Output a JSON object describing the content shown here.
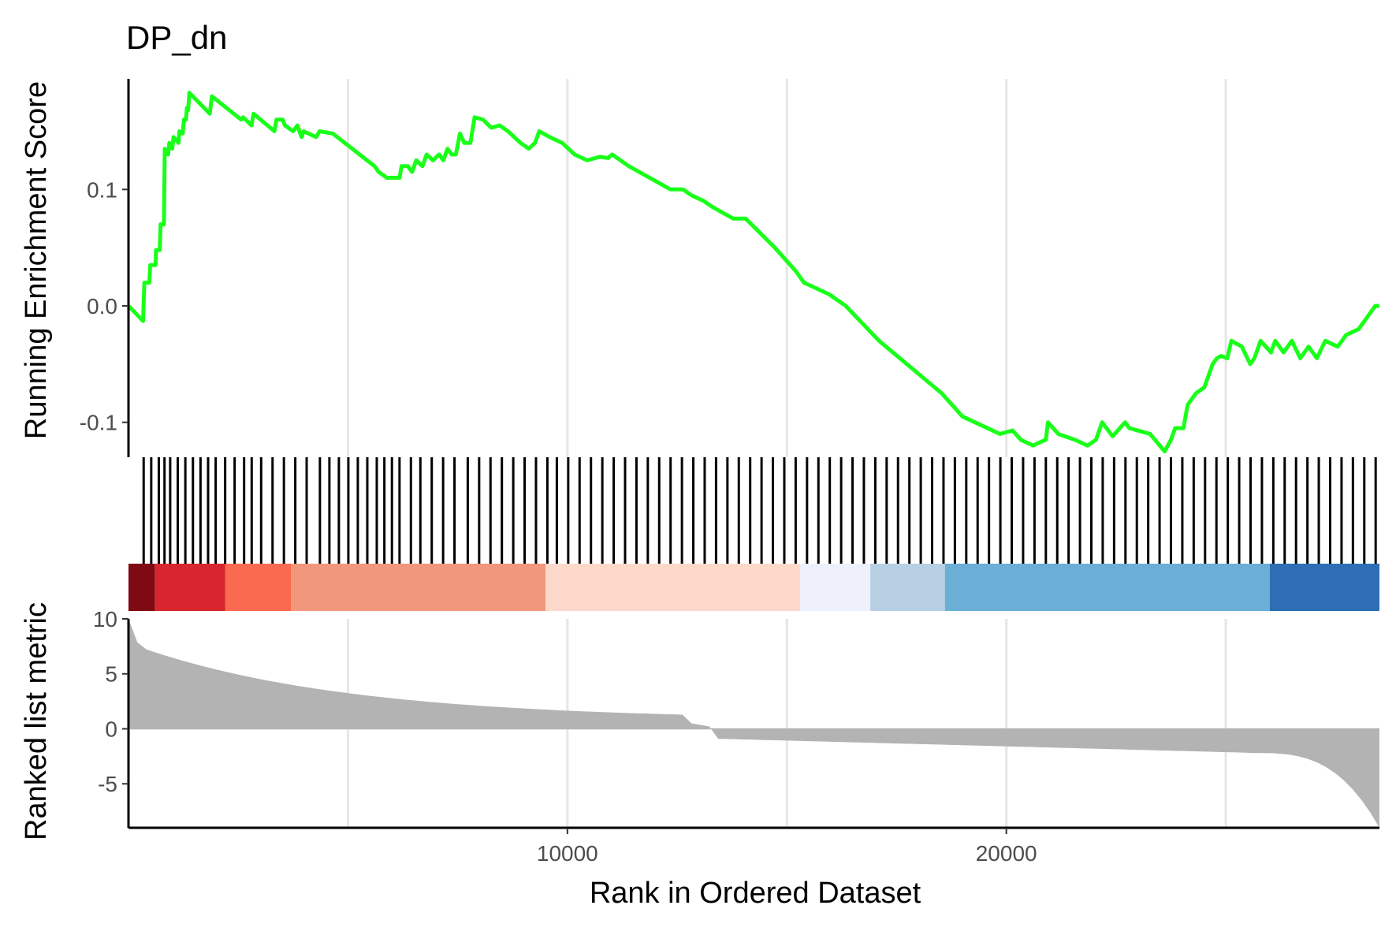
{
  "chart_data": {
    "type": "line",
    "title": "DP_dn",
    "xlabel": "Rank in Ordered Dataset",
    "x_range": [
      0,
      28500
    ],
    "x_ticks": [
      10000,
      20000
    ],
    "x_tick_labels": [
      "10000",
      "20000"
    ],
    "x_gridlines": [
      5000,
      10000,
      15000,
      20000,
      25000
    ],
    "panels": {
      "running_score": {
        "ylabel": "Running Enrichment Score",
        "ylim": [
          -0.13,
          0.195
        ],
        "y_ticks": [
          0.1,
          0.0,
          -0.1
        ],
        "y_tick_labels": [
          "0.1",
          "0.0",
          "-0.1"
        ],
        "line_color": "#1aff1a",
        "points": [
          [
            0,
            0.0
          ],
          [
            350,
            -0.013
          ],
          [
            380,
            0.02
          ],
          [
            500,
            0.02
          ],
          [
            520,
            0.035
          ],
          [
            650,
            0.035
          ],
          [
            660,
            0.048
          ],
          [
            750,
            0.048
          ],
          [
            770,
            0.07
          ],
          [
            850,
            0.07
          ],
          [
            870,
            0.135
          ],
          [
            950,
            0.13
          ],
          [
            980,
            0.14
          ],
          [
            1050,
            0.135
          ],
          [
            1080,
            0.145
          ],
          [
            1200,
            0.14
          ],
          [
            1220,
            0.15
          ],
          [
            1300,
            0.148
          ],
          [
            1330,
            0.16
          ],
          [
            1380,
            0.16
          ],
          [
            1400,
            0.17
          ],
          [
            1430,
            0.168
          ],
          [
            1460,
            0.183
          ],
          [
            1950,
            0.165
          ],
          [
            2000,
            0.18
          ],
          [
            2700,
            0.16
          ],
          [
            2750,
            0.162
          ],
          [
            2950,
            0.155
          ],
          [
            3000,
            0.165
          ],
          [
            3500,
            0.15
          ],
          [
            3550,
            0.16
          ],
          [
            3700,
            0.16
          ],
          [
            3750,
            0.155
          ],
          [
            3950,
            0.15
          ],
          [
            4050,
            0.155
          ],
          [
            4150,
            0.145
          ],
          [
            4200,
            0.15
          ],
          [
            4500,
            0.145
          ],
          [
            4580,
            0.15
          ],
          [
            4900,
            0.148
          ],
          [
            5900,
            0.12
          ],
          [
            6000,
            0.115
          ],
          [
            6200,
            0.11
          ],
          [
            6500,
            0.11
          ],
          [
            6550,
            0.12
          ],
          [
            6700,
            0.12
          ],
          [
            6800,
            0.115
          ],
          [
            6900,
            0.125
          ],
          [
            7050,
            0.12
          ],
          [
            7150,
            0.13
          ],
          [
            7300,
            0.125
          ],
          [
            7450,
            0.13
          ],
          [
            7550,
            0.125
          ],
          [
            7650,
            0.135
          ],
          [
            7750,
            0.13
          ],
          [
            7850,
            0.13
          ],
          [
            7950,
            0.148
          ],
          [
            8050,
            0.14
          ],
          [
            8200,
            0.14
          ],
          [
            8300,
            0.162
          ],
          [
            8500,
            0.16
          ],
          [
            8700,
            0.153
          ],
          [
            8900,
            0.155
          ],
          [
            9100,
            0.15
          ],
          [
            9400,
            0.14
          ],
          [
            9600,
            0.135
          ],
          [
            9750,
            0.14
          ],
          [
            9850,
            0.15
          ],
          [
            10100,
            0.145
          ],
          [
            10400,
            0.14
          ],
          [
            10700,
            0.13
          ],
          [
            11000,
            0.125
          ],
          [
            11300,
            0.128
          ],
          [
            11500,
            0.127
          ],
          [
            11600,
            0.13
          ],
          [
            12000,
            0.12
          ],
          [
            12500,
            0.11
          ],
          [
            13000,
            0.1
          ],
          [
            13300,
            0.1
          ],
          [
            13500,
            0.095
          ],
          [
            13800,
            0.09
          ],
          [
            14000,
            0.085
          ],
          [
            14500,
            0.075
          ],
          [
            14800,
            0.075
          ],
          [
            15500,
            0.05
          ],
          [
            16000,
            0.03
          ],
          [
            16200,
            0.02
          ],
          [
            16500,
            0.015
          ],
          [
            16800,
            0.01
          ],
          [
            17200,
            0.0
          ],
          [
            18000,
            -0.03
          ],
          [
            18500,
            -0.045
          ],
          [
            19000,
            -0.06
          ],
          [
            19500,
            -0.075
          ],
          [
            20000,
            -0.095
          ],
          [
            20300,
            -0.1
          ],
          [
            20600,
            -0.105
          ],
          [
            20900,
            -0.11
          ],
          [
            21200,
            -0.107
          ],
          [
            21400,
            -0.115
          ],
          [
            21700,
            -0.12
          ],
          [
            21800,
            -0.118
          ],
          [
            22000,
            -0.115
          ],
          [
            22050,
            -0.1
          ],
          [
            22300,
            -0.11
          ],
          [
            22700,
            -0.115
          ],
          [
            23000,
            -0.12
          ],
          [
            23200,
            -0.115
          ],
          [
            23350,
            -0.1
          ],
          [
            23600,
            -0.112
          ],
          [
            23900,
            -0.1
          ],
          [
            24000,
            -0.105
          ],
          [
            24500,
            -0.11
          ],
          [
            24850,
            -0.125
          ],
          [
            25000,
            -0.115
          ],
          [
            25100,
            -0.105
          ],
          [
            25300,
            -0.105
          ],
          [
            25400,
            -0.085
          ],
          [
            25600,
            -0.075
          ],
          [
            25800,
            -0.07
          ],
          [
            25900,
            -0.06
          ],
          [
            26000,
            -0.05
          ],
          [
            26100,
            -0.045
          ],
          [
            26200,
            -0.043
          ],
          [
            26350,
            -0.045
          ],
          [
            26450,
            -0.03
          ],
          [
            26700,
            -0.035
          ],
          [
            26900,
            -0.05
          ],
          [
            27000,
            -0.045
          ],
          [
            27150,
            -0.03
          ],
          [
            27400,
            -0.04
          ],
          [
            27500,
            -0.03
          ],
          [
            27700,
            -0.04
          ],
          [
            27900,
            -0.03
          ],
          [
            28100,
            -0.045
          ],
          [
            28300,
            -0.035
          ],
          [
            28500,
            -0.045
          ],
          [
            28700,
            -0.03
          ],
          [
            29000,
            -0.035
          ],
          [
            29200,
            -0.025
          ],
          [
            29500,
            -0.02
          ],
          [
            29700,
            -0.01
          ],
          [
            29900,
            0.0
          ],
          [
            30000,
            0.0
          ]
        ]
      },
      "hits": {
        "positions": [
          80,
          120,
          160,
          190,
          220,
          260,
          300,
          340,
          380,
          420,
          460,
          510,
          560,
          610,
          650,
          700,
          760,
          820,
          880,
          940,
          1010,
          1060,
          1110,
          1160,
          1210,
          1260,
          1310,
          1350,
          1390,
          1430,
          1490,
          1540,
          1600,
          1660,
          1720,
          1790,
          1850,
          1910,
          1970,
          2030,
          2090,
          2150,
          2210,
          2260,
          2320,
          2380,
          2440,
          2500,
          2560,
          2620,
          2680,
          2740,
          2800,
          2860,
          2920,
          2980,
          3040,
          3100,
          3160,
          3220,
          3280,
          3340,
          3400,
          3460,
          3520,
          3580,
          3640,
          3700,
          3760,
          3820,
          3880,
          3940,
          4000,
          4060,
          4120,
          4180,
          4240,
          4300,
          4360,
          4420,
          4480,
          4540,
          4600,
          4660,
          4720,
          4780,
          4840,
          4900,
          4960,
          5020,
          5080,
          5140,
          5200,
          5260,
          5320,
          5380,
          5440,
          5500,
          5560,
          5620,
          5680,
          5740,
          5800,
          5860,
          5920,
          5980,
          6040,
          6100,
          6160,
          6220,
          6280,
          6340,
          6400,
          6460,
          6520,
          6580
        ]
      },
      "color_band": {
        "segments": [
          {
            "from": 0,
            "to": 600,
            "color": "#7f0a14"
          },
          {
            "from": 600,
            "to": 2200,
            "color": "#d7262e"
          },
          {
            "from": 2200,
            "to": 3700,
            "color": "#f96a50"
          },
          {
            "from": 3700,
            "to": 9500,
            "color": "#f0977c"
          },
          {
            "from": 9500,
            "to": 15300,
            "color": "#fdd9cb"
          },
          {
            "from": 15300,
            "to": 16900,
            "color": "#eef1fb"
          },
          {
            "from": 16900,
            "to": 18600,
            "color": "#b7d0e4"
          },
          {
            "from": 18600,
            "to": 26000,
            "color": "#6baed6"
          },
          {
            "from": 26000,
            "to": 28500,
            "color": "#2d6eb4"
          }
        ]
      },
      "ranked_metric": {
        "ylabel": "Ranked list metric",
        "ylim": [
          -9,
          10
        ],
        "y_ticks": [
          10,
          5,
          0,
          -5
        ],
        "y_tick_labels": [
          "10",
          "5",
          "0",
          "-5"
        ],
        "fill_color": "#b3b3b3"
      }
    }
  }
}
